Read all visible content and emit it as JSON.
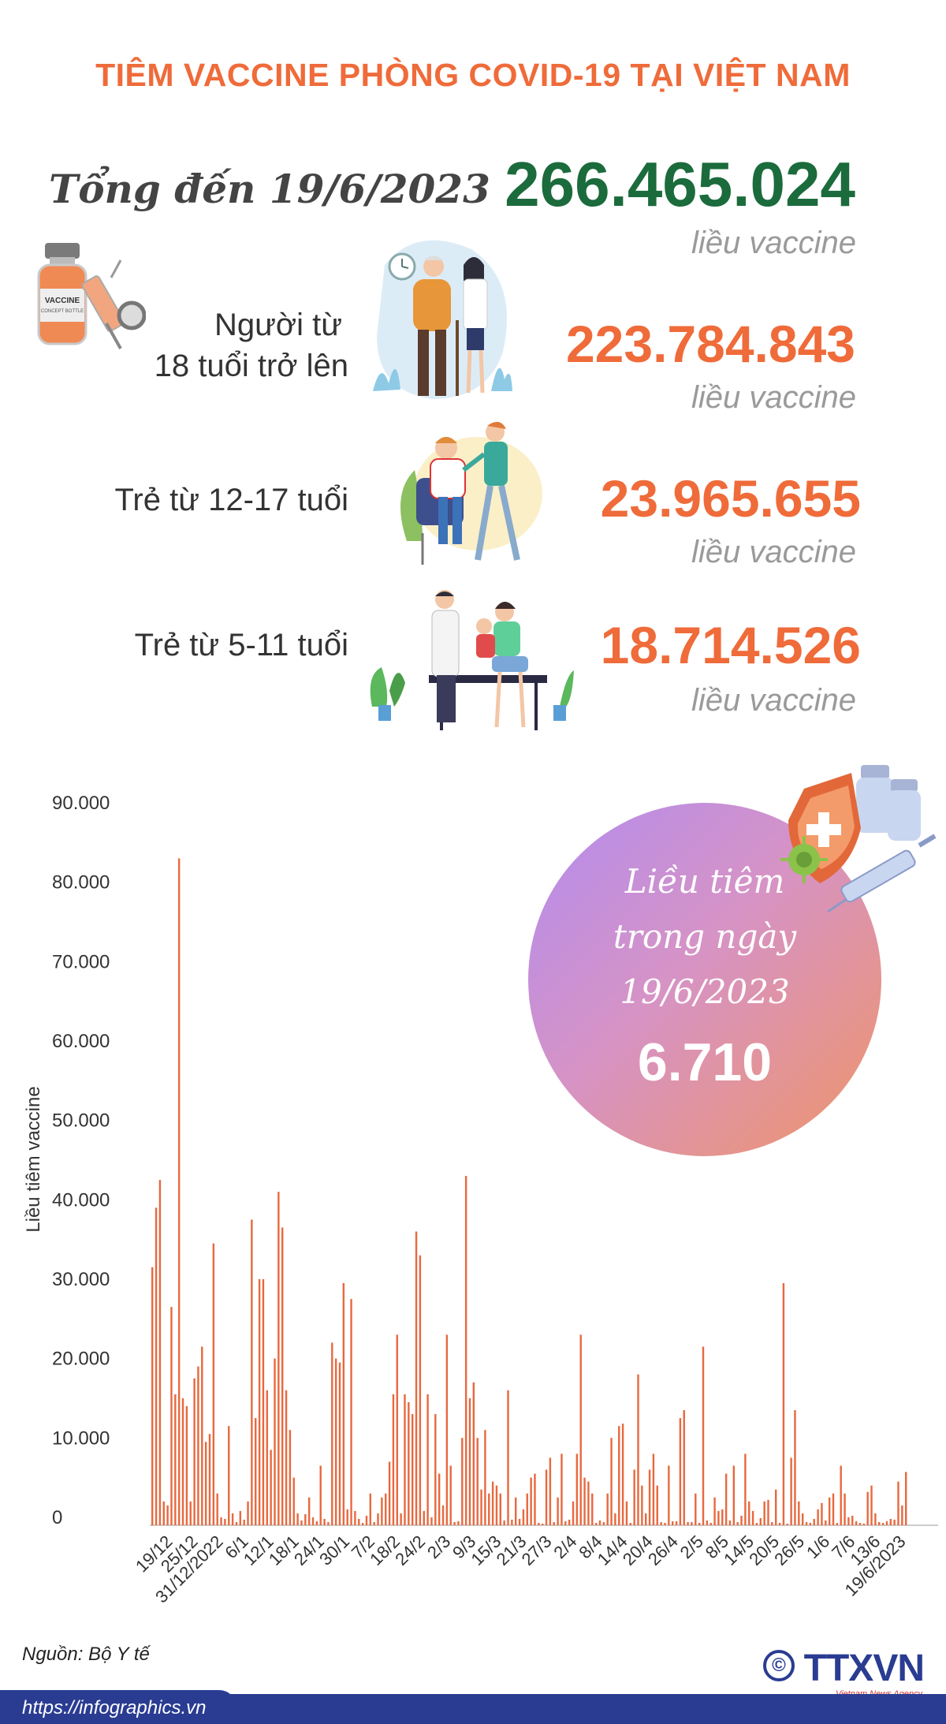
{
  "title": "TIÊM VACCINE PHÒNG COVID-19 TẠI VIỆT NAM",
  "total": {
    "label": "Tổng đến 19/6/2023",
    "value": "266.465.024",
    "unit": "liều vaccine"
  },
  "groups": [
    {
      "label_line1": "Người từ",
      "label_line2": "18 tuổi trở lên",
      "value": "223.784.843",
      "unit": "liều vaccine"
    },
    {
      "label_line1": "Trẻ từ 12-17 tuổi",
      "value": "23.965.655",
      "unit": "liều vaccine"
    },
    {
      "label_line1": "Trẻ từ 5-11 tuổi",
      "value": "18.714.526",
      "unit": "liều vaccine"
    }
  ],
  "vial_label": {
    "line1": "VACCINE",
    "line2": "CONCEPT BOTTLE"
  },
  "bubble": {
    "line1": "Liều tiêm",
    "line2": "trong ngày",
    "line3": "19/6/2023",
    "value": "6.710"
  },
  "source": "Nguồn: Bộ Y tế",
  "url": "https://infographics.vn",
  "logo": "TTXVN",
  "logo_sub": "Vietnam News Agency",
  "copyright": "©",
  "colors": {
    "accent": "#ef6b3a",
    "total": "#1b6b3c",
    "bar": "#e8683e",
    "footer": "#2a3c92"
  },
  "chart_data": {
    "type": "bar",
    "title": "",
    "xlabel": "",
    "ylabel": "Liều tiêm vaccine",
    "ylim": [
      0,
      90000
    ],
    "yticks": [
      0,
      10000,
      20000,
      30000,
      40000,
      50000,
      60000,
      70000,
      80000,
      90000
    ],
    "ytick_labels": [
      "0",
      "10.000",
      "20.000",
      "30.000",
      "40.000",
      "50.000",
      "60.000",
      "70.000",
      "80.000",
      "90.000"
    ],
    "x_tick_labels": [
      "19/12",
      "25/12",
      "31/12/2022",
      "6/1",
      "12/1",
      "18/1",
      "24/1",
      "30/1",
      "7/2",
      "18/2",
      "24/2",
      "2/3",
      "9/3",
      "15/3",
      "21/3",
      "27/3",
      "2/4",
      "8/4",
      "14/4",
      "20/4",
      "26/4",
      "2/5",
      "8/5",
      "14/5",
      "20/5",
      "26/5",
      "1/6",
      "7/6",
      "13/6",
      "19/6/2023"
    ],
    "grid": false,
    "series": [
      {
        "values": [
          32500,
          40000,
          43500,
          3000,
          2500,
          27500,
          16500,
          84000,
          16000,
          15000,
          3000,
          18500,
          20000,
          22500,
          10500,
          11500,
          35500,
          4000,
          1000,
          800,
          12500,
          1500,
          400,
          1800,
          700,
          3000,
          38500,
          13500,
          31000,
          31000,
          17000,
          9500,
          21000,
          42000,
          37500,
          17000,
          12000,
          6000,
          1500,
          600,
          1400,
          3500,
          1000,
          500,
          7500,
          800,
          400,
          23000,
          21000,
          20500,
          30500,
          2000,
          28500,
          1800,
          800,
          300,
          1200,
          4000,
          400,
          1500,
          3500,
          4000,
          8000,
          16500,
          24000,
          1500,
          16500,
          15500,
          14000,
          37000,
          34000,
          1800,
          16500,
          1000,
          14000,
          6500,
          2500,
          24000,
          7500,
          400,
          500,
          11000,
          44000,
          16000,
          18000,
          11000,
          4500,
          12000,
          4000,
          5500,
          5000,
          4000,
          600,
          17000,
          700,
          3500,
          800,
          2000,
          4000,
          6000,
          6500,
          300,
          200,
          7000,
          8500,
          400,
          3500,
          9000,
          500,
          700,
          3000,
          9000,
          24000,
          6000,
          5500,
          4000,
          300,
          600,
          400,
          4000,
          11000,
          1500,
          12500,
          12800,
          3000,
          300,
          7000,
          19000,
          5000,
          1500,
          7000,
          9000,
          5000,
          400,
          300,
          7500,
          500,
          500,
          13500,
          14500,
          400,
          400,
          4000,
          300,
          22500,
          600,
          300,
          3500,
          1800,
          2000,
          6500,
          600,
          7500,
          400,
          1200,
          9000,
          3000,
          1800,
          300,
          900,
          3000,
          3200,
          400,
          4500,
          300,
          30500,
          200,
          8500,
          14500,
          3000,
          1500,
          400,
          300,
          800,
          2000,
          2800,
          600,
          3500,
          4000,
          300,
          7500,
          4000,
          1000,
          1200,
          500,
          300,
          200,
          4200,
          5000,
          1500,
          400,
          300,
          500,
          800,
          700,
          5500,
          2500,
          6710
        ]
      }
    ]
  }
}
